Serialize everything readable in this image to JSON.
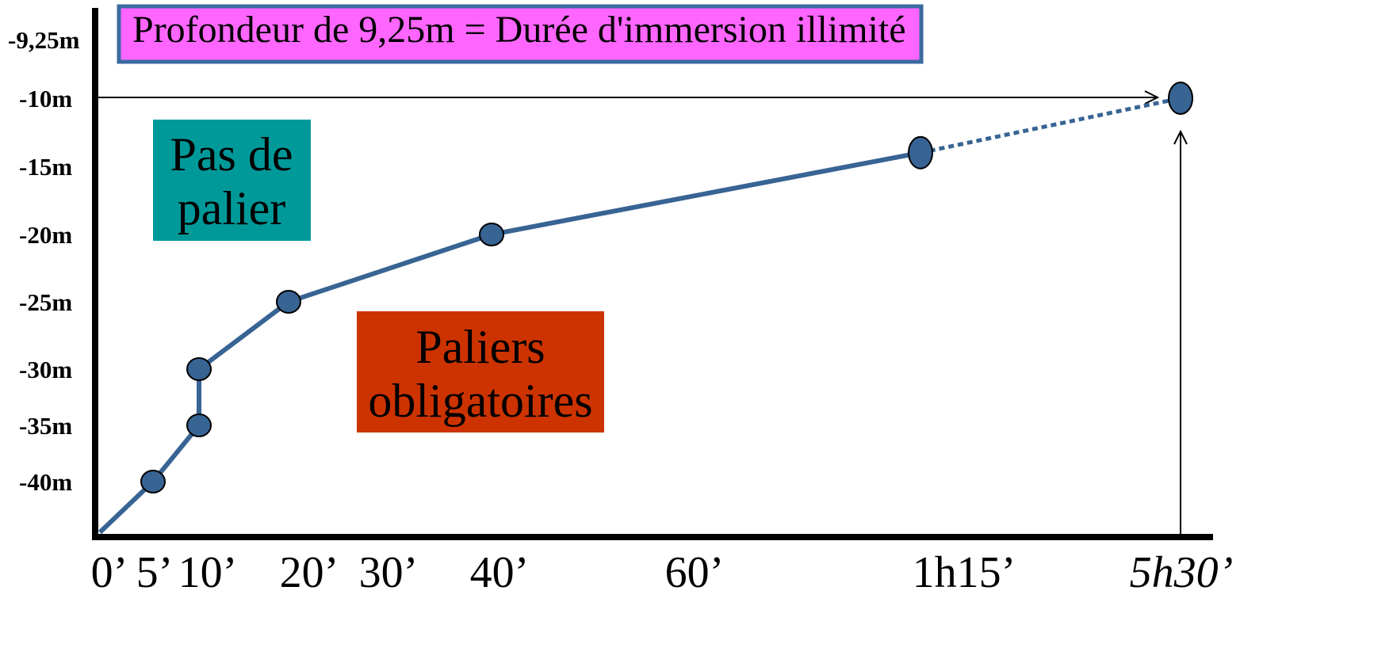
{
  "chart_data": {
    "type": "line",
    "title": "Profondeur de 9,25m = Durée d'immersion illimité",
    "xlabel": "",
    "ylabel": "",
    "y_tick_labels": [
      "-9,25m",
      "-10m",
      "-15m",
      "-20m",
      "-25m",
      "-30m",
      "-35m",
      "-40m"
    ],
    "y_ticks": [
      -9.25,
      -10,
      -15,
      -20,
      -25,
      -30,
      -35,
      -40
    ],
    "x_tick_labels": [
      "0’",
      "5’",
      "10’",
      "20’",
      "30’",
      "40’",
      "60’",
      "1h15’",
      "5h30’"
    ],
    "series": [
      {
        "points": [
          {
            "x": "0’",
            "y": -43
          },
          {
            "x": "5’",
            "y": -40
          },
          {
            "x": "10’",
            "y": -35
          },
          {
            "x": "10’",
            "y": -30
          },
          {
            "x": "20’",
            "y": -25
          },
          {
            "x": "40’",
            "y": -20
          },
          {
            "x": "1h15’",
            "y": -14
          },
          {
            "x": "5h30’",
            "y": -10
          }
        ]
      }
    ],
    "annotations": {
      "no_stop_region": "Pas de palier",
      "mandatory_stops_region": "Paliers obligatoires"
    },
    "colors": {
      "line": "#386494",
      "marker": "#386494",
      "title_box_fill": "#ff66ff",
      "title_box_border": "#3a6aa0",
      "no_stop_fill": "#009999",
      "mandatory_fill": "#cc3300",
      "axis": "#000000"
    },
    "grid": false,
    "legend": "none"
  }
}
